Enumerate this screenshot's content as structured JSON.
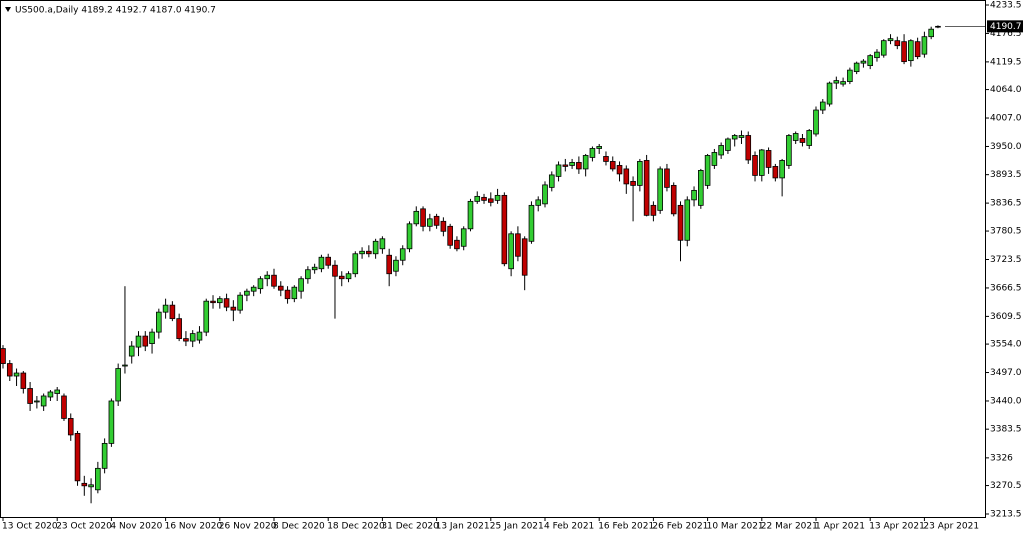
{
  "chart_data": {
    "type": "candlestick",
    "title": "US500.a,Daily  4189.2 4192.7 4187.0 4190.7",
    "last_price": 4190.7,
    "up_color": "#32cd32",
    "down_color": "#c00000",
    "ylim": [
      3205.5,
      4243.5
    ],
    "yticks": [
      3213.5,
      3270.5,
      3326,
      {
        "value": 3383.5,
        "label": "3383.5"
      },
      {
        "value": 3440,
        "label": "3440.0"
      },
      {
        "value": 3497,
        "label": "3497.0"
      },
      {
        "value": 3554,
        "label": "3554.0"
      },
      3609.5,
      3666.5,
      3723.5,
      3780.5,
      3836.5,
      3893.5,
      {
        "value": 3950,
        "label": "3950.0"
      },
      {
        "value": 4007,
        "label": "4007.0"
      },
      {
        "value": 4064,
        "label": "4064.0"
      },
      4119.5,
      4176.5,
      4233.5
    ],
    "categories": [
      "13 Oct 2020",
      null,
      null,
      null,
      null,
      null,
      null,
      null,
      "23 Oct 2020",
      null,
      null,
      null,
      null,
      null,
      null,
      null,
      "4 Nov 2020",
      null,
      null,
      null,
      null,
      null,
      null,
      null,
      "16 Nov 2020",
      null,
      null,
      null,
      null,
      null,
      null,
      null,
      "26 Nov 2020",
      null,
      null,
      null,
      null,
      null,
      null,
      null,
      "8 Dec 2020",
      null,
      null,
      null,
      null,
      null,
      null,
      null,
      "18 Dec 2020",
      null,
      null,
      null,
      null,
      null,
      null,
      null,
      "31 Dec 2020",
      null,
      null,
      null,
      null,
      null,
      null,
      null,
      "13 Jan 2021",
      null,
      null,
      null,
      null,
      null,
      null,
      null,
      "25 Jan 2021",
      null,
      null,
      null,
      null,
      null,
      null,
      null,
      "4 Feb 2021",
      null,
      null,
      null,
      null,
      null,
      null,
      null,
      "16 Feb 2021",
      null,
      null,
      null,
      null,
      null,
      null,
      null,
      "26 Feb 2021",
      null,
      null,
      null,
      null,
      null,
      null,
      null,
      "10 Mar 2021",
      null,
      null,
      null,
      null,
      null,
      null,
      null,
      "22 Mar 2021",
      null,
      null,
      null,
      null,
      null,
      null,
      null,
      "1 Apr 2021",
      null,
      null,
      null,
      null,
      null,
      null,
      null,
      "13 Apr 2021",
      null,
      null,
      null,
      null,
      null,
      null,
      null,
      "23 Apr 2021",
      null,
      null
    ],
    "open": [
      3545,
      3515,
      3490,
      3496,
      3465,
      3438,
      3430,
      3448,
      3455,
      3450,
      3405,
      3375,
      3275,
      3268,
      3262,
      3305,
      3355,
      3440,
      3510,
      3530,
      3548,
      3570,
      3555,
      3578,
      3618,
      3632,
      3605,
      3565,
      3560,
      3562,
      3578,
      3640,
      3637,
      3645,
      3628,
      3622,
      3652,
      3660,
      3665,
      3685,
      3692,
      3670,
      3662,
      3645,
      3660,
      3685,
      3703,
      3705,
      3728,
      3712,
      3690,
      3685,
      3695,
      3735,
      3740,
      3735,
      3745,
      3732,
      3700,
      3722,
      3745,
      3795,
      3825,
      3790,
      3810,
      3800,
      3790,
      3762,
      3750,
      3785,
      3840,
      3848,
      3845,
      3842,
      3852,
      3705,
      3775,
      3765,
      3760,
      3832,
      3835,
      3868,
      3890,
      3913,
      3912,
      3918,
      3905,
      3928,
      3946,
      3930,
      3920,
      3912,
      3905,
      3880,
      3872,
      3922,
      3832,
      3822,
      3905,
      3872,
      3832,
      3762,
      3843,
      3832,
      3872,
      3912,
      3933,
      3942,
      3965,
      3968,
      3972,
      3932,
      3892,
      3942,
      3910,
      3887,
      3912,
      3962,
      3966,
      3952,
      3975,
      4023,
      4035,
      4077,
      4075,
      4080,
      4100,
      4117,
      4112,
      4128,
      4133,
      4162,
      4162,
      4160,
      4122,
      4160,
      4135,
      4170,
      4189.2
    ],
    "high": [
      3552,
      3522,
      3505,
      3500,
      3478,
      3450,
      3455,
      3462,
      3468,
      3455,
      3415,
      3380,
      3290,
      3285,
      3318,
      3365,
      3445,
      3515,
      3670,
      3560,
      3580,
      3580,
      3585,
      3625,
      3645,
      3640,
      3615,
      3580,
      3582,
      3590,
      3645,
      3652,
      3650,
      3655,
      3642,
      3658,
      3665,
      3672,
      3690,
      3700,
      3705,
      3680,
      3670,
      3672,
      3690,
      3710,
      3715,
      3733,
      3735,
      3722,
      3700,
      3700,
      3740,
      3748,
      3752,
      3765,
      3770,
      3745,
      3730,
      3752,
      3800,
      3830,
      3830,
      3815,
      3815,
      3808,
      3795,
      3770,
      3790,
      3845,
      3860,
      3855,
      3858,
      3865,
      3858,
      3780,
      3790,
      3770,
      3840,
      3850,
      3880,
      3900,
      3920,
      3925,
      3925,
      3930,
      3935,
      3950,
      3955,
      3940,
      3930,
      3920,
      3912,
      3890,
      3925,
      3933,
      3840,
      3910,
      3915,
      3878,
      3840,
      3850,
      3870,
      3905,
      3935,
      3945,
      3958,
      3968,
      3975,
      3982,
      3980,
      3940,
      3945,
      3948,
      3915,
      3925,
      3975,
      3980,
      3975,
      3985,
      4030,
      4045,
      4080,
      4090,
      4088,
      4108,
      4120,
      4125,
      4135,
      4145,
      4165,
      4175,
      4170,
      4175,
      4165,
      4168,
      4180,
      4190,
      4192.7
    ],
    "low": [
      3505,
      3480,
      3470,
      3455,
      3420,
      3425,
      3420,
      3440,
      3440,
      3400,
      3360,
      3270,
      3250,
      3235,
      3255,
      3295,
      3348,
      3430,
      3495,
      3515,
      3530,
      3540,
      3535,
      3565,
      3605,
      3600,
      3560,
      3550,
      3548,
      3555,
      3570,
      3625,
      3625,
      3620,
      3600,
      3615,
      3640,
      3650,
      3655,
      3670,
      3665,
      3650,
      3635,
      3638,
      3645,
      3675,
      3695,
      3698,
      3705,
      3605,
      3670,
      3678,
      3688,
      3725,
      3728,
      3725,
      3735,
      3670,
      3690,
      3712,
      3738,
      3790,
      3780,
      3780,
      3785,
      3770,
      3745,
      3740,
      3742,
      3780,
      3835,
      3835,
      3830,
      3835,
      3710,
      3690,
      3720,
      3662,
      3755,
      3820,
      3828,
      3860,
      3880,
      3900,
      3905,
      3895,
      3890,
      3920,
      3935,
      3912,
      3900,
      3880,
      3855,
      3800,
      3860,
      3810,
      3800,
      3815,
      3860,
      3810,
      3720,
      3750,
      3830,
      3825,
      3865,
      3905,
      3925,
      3935,
      3950,
      3955,
      3915,
      3880,
      3880,
      3895,
      3880,
      3850,
      3905,
      3955,
      3950,
      3945,
      3970,
      4015,
      4030,
      4065,
      4070,
      4075,
      4095,
      4108,
      4105,
      4120,
      4128,
      4155,
      4145,
      4115,
      4110,
      4125,
      4128,
      4165,
      4187.0
    ],
    "close": [
      3515,
      3490,
      3496,
      3465,
      3435,
      3440,
      3450,
      3458,
      3462,
      3405,
      3372,
      3280,
      3270,
      3272,
      3305,
      3355,
      3440,
      3505,
      3512,
      3550,
      3570,
      3550,
      3578,
      3618,
      3632,
      3605,
      3565,
      3560,
      3575,
      3578,
      3640,
      3637,
      3645,
      3628,
      3622,
      3652,
      3660,
      3668,
      3685,
      3692,
      3670,
      3662,
      3645,
      3668,
      3685,
      3703,
      3708,
      3728,
      3712,
      3690,
      3685,
      3695,
      3735,
      3740,
      3735,
      3760,
      3765,
      3695,
      3722,
      3745,
      3795,
      3820,
      3790,
      3805,
      3792,
      3780,
      3752,
      3745,
      3785,
      3840,
      3850,
      3842,
      3838,
      3852,
      3715,
      3775,
      3730,
      3692,
      3832,
      3843,
      3873,
      3893,
      3913,
      3910,
      3918,
      3905,
      3932,
      3946,
      3950,
      3920,
      3905,
      3895,
      3875,
      3872,
      3920,
      3812,
      3812,
      3905,
      3868,
      3815,
      3762,
      3843,
      3862,
      3902,
      3932,
      3938,
      3952,
      3965,
      3972,
      3972,
      3923,
      3892,
      3943,
      3908,
      3887,
      3922,
      3972,
      3976,
      3958,
      3982,
      4023,
      4039,
      4077,
      4082,
      4080,
      4103,
      4117,
      4121,
      4132,
      4139,
      4162,
      4166,
      4152,
      4120,
      4162,
      4130,
      4170,
      4185,
      4190.7
    ]
  }
}
